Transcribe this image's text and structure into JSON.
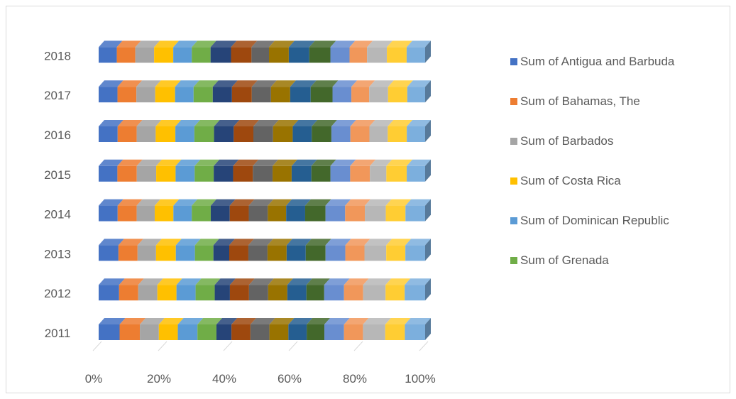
{
  "chart_data": {
    "type": "bar",
    "orientation": "horizontal",
    "stacking": "percent",
    "style": "3d",
    "title": "",
    "xlabel": "",
    "ylabel": "",
    "xlim": [
      0,
      100
    ],
    "grid": false,
    "legend_position": "right",
    "categories": [
      "2011",
      "2012",
      "2013",
      "2014",
      "2015",
      "2016",
      "2017",
      "2018"
    ],
    "x_tick_labels": [
      "0%",
      "20%",
      "40%",
      "60%",
      "80%",
      "100%"
    ],
    "x_tick_values": [
      0,
      20,
      40,
      60,
      80,
      100
    ],
    "series": [
      {
        "name": "Sum of Antigua and Barbuda",
        "color": "#4472C4",
        "values": [
          6.4,
          6.2,
          6.0,
          5.8,
          5.7,
          5.8,
          5.7,
          5.5
        ]
      },
      {
        "name": "Sum of Bahamas, The",
        "color": "#ED7D31",
        "values": [
          6.2,
          5.8,
          5.8,
          5.8,
          5.9,
          5.8,
          5.7,
          5.6
        ]
      },
      {
        "name": "Sum of Barbados",
        "color": "#A5A5A5",
        "values": [
          5.8,
          5.8,
          5.6,
          5.5,
          5.9,
          5.8,
          5.7,
          5.7
        ]
      },
      {
        "name": "Sum of Costa Rica",
        "color": "#FFC000",
        "values": [
          5.8,
          5.8,
          6.0,
          5.7,
          5.9,
          6.0,
          6.0,
          5.8
        ]
      },
      {
        "name": "Sum of Dominican Republic",
        "color": "#5B9BD5",
        "values": [
          6.0,
          5.8,
          5.8,
          5.6,
          5.8,
          5.8,
          5.6,
          5.6
        ]
      },
      {
        "name": "Sum of Grenada",
        "color": "#70AD47",
        "values": [
          5.8,
          5.8,
          5.6,
          5.8,
          5.8,
          6.0,
          5.8,
          5.7
        ]
      },
      {
        "name": "",
        "color": "#264478",
        "values": [
          4.6,
          4.6,
          4.8,
          5.8,
          5.9,
          6.0,
          5.8,
          6.2
        ]
      },
      {
        "name": "",
        "color": "#9E480E",
        "values": [
          5.8,
          5.8,
          5.8,
          5.8,
          6.0,
          6.0,
          6.0,
          6.2
        ]
      },
      {
        "name": "",
        "color": "#636363",
        "values": [
          5.8,
          5.8,
          5.8,
          5.8,
          6.0,
          6.0,
          5.8,
          5.3
        ]
      },
      {
        "name": "",
        "color": "#997300",
        "values": [
          5.8,
          5.8,
          5.8,
          5.6,
          5.8,
          6.0,
          5.8,
          6.0
        ]
      },
      {
        "name": "",
        "color": "#255E91",
        "values": [
          5.6,
          5.8,
          5.8,
          5.8,
          6.0,
          5.8,
          6.2,
          6.2
        ]
      },
      {
        "name": "",
        "color": "#43682B",
        "values": [
          5.4,
          5.4,
          6.0,
          6.2,
          5.8,
          6.0,
          6.6,
          6.4
        ]
      },
      {
        "name": "",
        "color": "#698ED0",
        "values": [
          6.0,
          6.0,
          6.0,
          6.0,
          6.0,
          5.8,
          5.7,
          5.8
        ]
      },
      {
        "name": "",
        "color": "#F1975A",
        "values": [
          5.8,
          5.8,
          5.8,
          6.0,
          6.0,
          5.8,
          5.4,
          5.3
        ]
      },
      {
        "name": "",
        "color": "#B7B7B7",
        "values": [
          6.8,
          6.8,
          6.6,
          6.4,
          5.0,
          5.6,
          5.7,
          6.0
        ]
      },
      {
        "name": "",
        "color": "#FFCD33",
        "values": [
          6.0,
          5.8,
          5.8,
          6.0,
          6.2,
          5.8,
          5.8,
          6.0
        ]
      },
      {
        "name": "",
        "color": "#7CAFDD",
        "values": [
          6.2,
          6.2,
          6.0,
          6.0,
          5.6,
          5.6,
          5.4,
          5.6
        ]
      }
    ]
  }
}
